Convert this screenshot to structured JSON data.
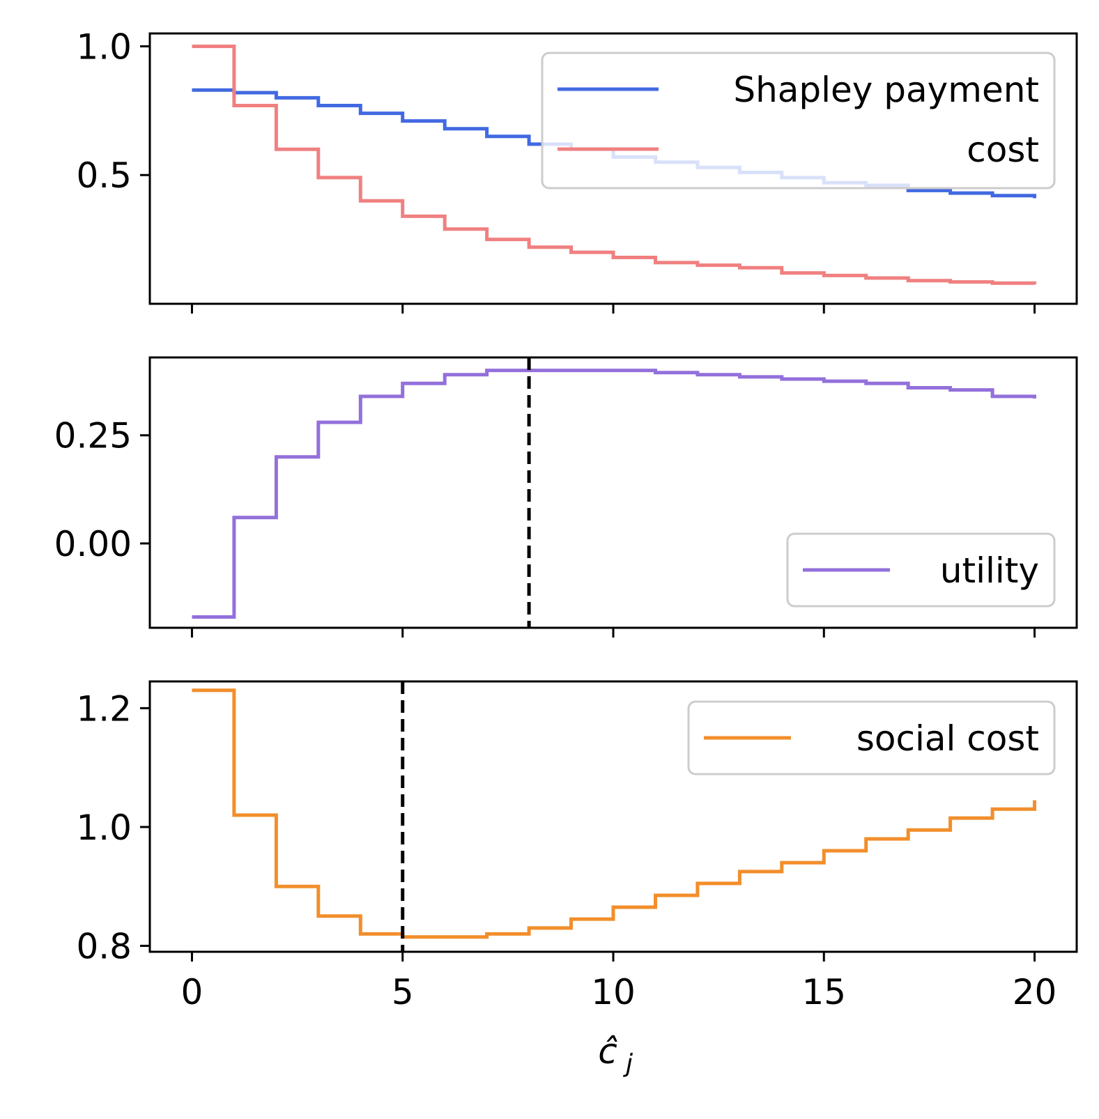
{
  "chart_data": [
    {
      "type": "line",
      "step": true,
      "x": [
        0,
        1,
        2,
        3,
        4,
        5,
        6,
        7,
        8,
        9,
        10,
        11,
        12,
        13,
        14,
        15,
        16,
        17,
        18,
        19,
        20
      ],
      "xlim": [
        -1,
        21
      ],
      "ylim": [
        0.0,
        1.05
      ],
      "yticks": [
        0.5,
        1.0
      ],
      "ytick_labels": [
        "0.5",
        "1.0"
      ],
      "legend_position": "top-right",
      "series": [
        {
          "name": "Shapley payment",
          "color": "#4169e1",
          "values": [
            0.83,
            0.82,
            0.8,
            0.77,
            0.74,
            0.71,
            0.68,
            0.65,
            0.62,
            0.6,
            0.57,
            0.55,
            0.53,
            0.51,
            0.49,
            0.47,
            0.46,
            0.44,
            0.43,
            0.42,
            0.41
          ]
        },
        {
          "name": "cost",
          "color": "#f08080",
          "values": [
            1.0,
            0.77,
            0.6,
            0.49,
            0.4,
            0.34,
            0.29,
            0.25,
            0.22,
            0.2,
            0.18,
            0.16,
            0.15,
            0.14,
            0.12,
            0.11,
            0.1,
            0.09,
            0.085,
            0.08,
            0.075
          ]
        }
      ],
      "vlines": []
    },
    {
      "type": "line",
      "step": true,
      "x": [
        0,
        1,
        2,
        3,
        4,
        5,
        6,
        7,
        8,
        9,
        10,
        11,
        12,
        13,
        14,
        15,
        16,
        17,
        18,
        19,
        20
      ],
      "xlim": [
        -1,
        21
      ],
      "ylim": [
        -0.195,
        0.43
      ],
      "yticks": [
        0.0,
        0.25
      ],
      "ytick_labels": [
        "0.00",
        "0.25"
      ],
      "legend_position": "lower-right",
      "series": [
        {
          "name": "utility",
          "color": "#9370db",
          "values": [
            -0.17,
            0.06,
            0.2,
            0.28,
            0.34,
            0.37,
            0.39,
            0.4,
            0.4,
            0.4,
            0.4,
            0.395,
            0.39,
            0.385,
            0.38,
            0.375,
            0.37,
            0.36,
            0.355,
            0.34,
            0.335
          ]
        }
      ],
      "vlines": [
        8
      ]
    },
    {
      "type": "line",
      "step": true,
      "x": [
        0,
        1,
        2,
        3,
        4,
        5,
        6,
        7,
        8,
        9,
        10,
        11,
        12,
        13,
        14,
        15,
        16,
        17,
        18,
        19,
        20
      ],
      "xlim": [
        -1,
        21
      ],
      "ylim": [
        0.79,
        1.245
      ],
      "yticks": [
        0.8,
        1.0,
        1.2
      ],
      "ytick_labels": [
        "0.8",
        "1.0",
        "1.2"
      ],
      "xticks": [
        0,
        5,
        10,
        15,
        20
      ],
      "xtick_labels": [
        "0",
        "5",
        "10",
        "15",
        "20"
      ],
      "xlabel": "ĉ",
      "xlabel_sub": "j",
      "legend_position": "top-right",
      "series": [
        {
          "name": "social cost",
          "color": "#f28e2b",
          "values": [
            1.23,
            1.02,
            0.9,
            0.85,
            0.82,
            0.815,
            0.815,
            0.82,
            0.83,
            0.845,
            0.865,
            0.885,
            0.905,
            0.925,
            0.94,
            0.96,
            0.98,
            0.995,
            1.015,
            1.03,
            1.045
          ]
        }
      ],
      "vlines": [
        5
      ]
    }
  ]
}
